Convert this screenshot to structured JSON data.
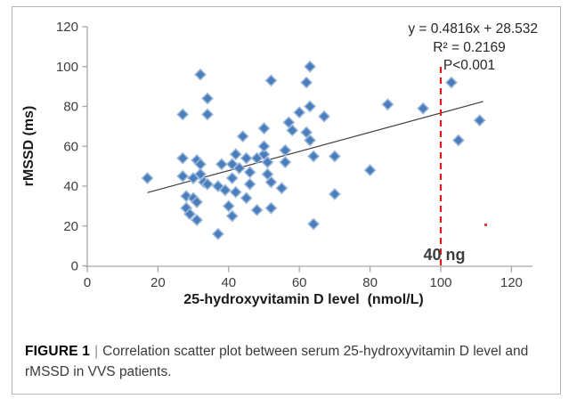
{
  "figure": {
    "caption_label": "FIGURE 1",
    "caption_separator": "|",
    "caption_text": "Correlation scatter plot between serum 25-hydroxyvitamin D level and rMSSD in VVS patients."
  },
  "chart_data": {
    "type": "scatter",
    "title": "",
    "xlabel": "25-hydroxyvitamin D level  (nmol/L)",
    "ylabel": "rMSSD (ms)",
    "xlim": [
      0,
      120
    ],
    "ylim": [
      0,
      120
    ],
    "xticks": [
      0,
      20,
      40,
      60,
      80,
      100,
      120
    ],
    "yticks": [
      0,
      20,
      40,
      60,
      80,
      100,
      120
    ],
    "grid": false,
    "legend": "none",
    "points": [
      [
        17,
        44
      ],
      [
        27,
        76
      ],
      [
        34,
        76
      ],
      [
        34,
        84
      ],
      [
        32,
        96
      ],
      [
        27,
        54
      ],
      [
        31,
        53
      ],
      [
        38,
        51
      ],
      [
        27,
        45
      ],
      [
        30,
        44
      ],
      [
        32,
        51
      ],
      [
        32,
        46
      ],
      [
        33,
        42
      ],
      [
        34,
        41
      ],
      [
        37,
        40
      ],
      [
        39,
        38
      ],
      [
        28,
        35
      ],
      [
        30,
        34
      ],
      [
        31,
        32
      ],
      [
        28,
        29
      ],
      [
        29,
        26
      ],
      [
        31,
        23
      ],
      [
        37,
        16
      ],
      [
        40,
        30
      ],
      [
        41,
        25
      ],
      [
        41,
        44
      ],
      [
        42,
        37
      ],
      [
        45,
        34
      ],
      [
        48,
        28
      ],
      [
        52,
        29
      ],
      [
        42,
        56
      ],
      [
        41,
        51
      ],
      [
        43,
        49
      ],
      [
        45,
        54
      ],
      [
        48,
        54
      ],
      [
        50,
        56
      ],
      [
        51,
        52
      ],
      [
        56,
        52
      ],
      [
        46,
        47
      ],
      [
        46,
        41
      ],
      [
        52,
        42
      ],
      [
        51,
        46
      ],
      [
        55,
        39
      ],
      [
        44,
        65
      ],
      [
        50,
        69
      ],
      [
        50,
        60
      ],
      [
        52,
        93
      ],
      [
        57,
        72
      ],
      [
        58,
        68
      ],
      [
        56,
        58
      ],
      [
        62,
        67
      ],
      [
        63,
        63
      ],
      [
        60,
        77
      ],
      [
        63,
        80
      ],
      [
        67,
        75
      ],
      [
        63,
        100
      ],
      [
        62,
        92
      ],
      [
        64,
        55
      ],
      [
        70,
        55
      ],
      [
        64,
        21
      ],
      [
        70,
        36
      ],
      [
        80,
        48
      ],
      [
        85,
        81
      ],
      [
        95,
        79
      ],
      [
        103,
        92
      ],
      [
        105,
        63
      ],
      [
        111,
        73
      ]
    ],
    "trendline": {
      "equation": "y = 0.4816x + 28.532",
      "slope": 0.4816,
      "intercept": 28.532,
      "x_start": 17,
      "x_end": 112
    },
    "annotations": {
      "equation": "y = 0.4816x + 28.532",
      "r_squared": "R² = 0.2169",
      "p_value": "P<0.001",
      "threshold_label": "40 ng",
      "threshold_x": 100
    },
    "colors": {
      "marker_fill": "#4a7ebb",
      "marker_stroke": "#9cb8dc",
      "trend_line": "#3f3f3f",
      "threshold_line": "#e5191d",
      "threshold_label_color": "#e93a68",
      "axis": "#a6a6a6",
      "tick_label": "#3d3d3d"
    }
  }
}
